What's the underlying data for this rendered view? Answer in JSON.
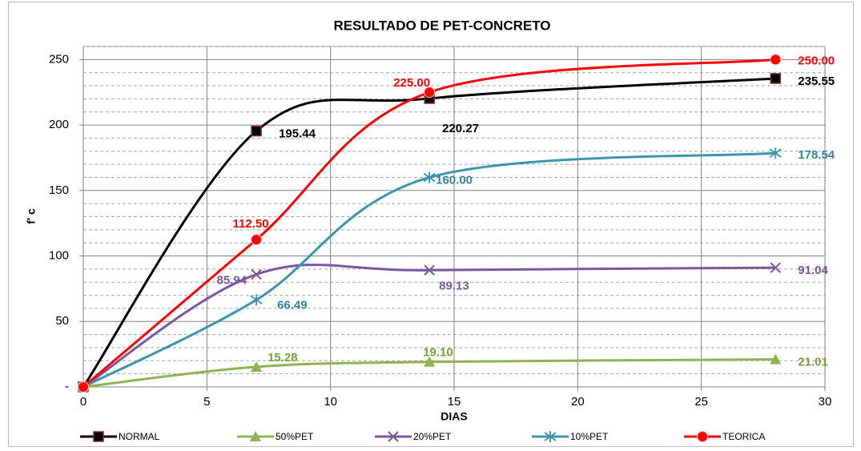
{
  "chart_data": {
    "type": "line",
    "title": "RESULTADO DE PET-CONCRETO",
    "x_label": "DIAS",
    "y_label": "f' c",
    "x": [
      0,
      7,
      14,
      28
    ],
    "xlim": [
      0,
      30
    ],
    "xticks": [
      0,
      5,
      10,
      15,
      20,
      25,
      30
    ],
    "ylim": [
      0,
      260
    ],
    "yticks": [
      {
        "value": 0,
        "label": "-"
      },
      50,
      100,
      150,
      200,
      250
    ],
    "yminor_ticks": [
      10,
      20,
      30,
      40,
      60,
      70,
      80,
      90,
      110,
      120,
      130,
      140,
      160,
      170,
      180,
      190,
      210,
      220,
      230,
      240,
      260
    ],
    "grid": true,
    "smooth": true,
    "legend": "bottom",
    "series": [
      {
        "name": "NORMAL",
        "color": "#000000",
        "marker": "square",
        "values": [
          0,
          195.44,
          220.27,
          235.55
        ],
        "value_labels": [
          null,
          "195.44",
          "220.27",
          "235.55"
        ]
      },
      {
        "name": "50%PET",
        "color": "#8db353",
        "marker": "triangle",
        "values": [
          0,
          15.28,
          19.1,
          21.01
        ],
        "value_labels": [
          null,
          "15.28",
          "19.10",
          "21.01"
        ]
      },
      {
        "name": "20%PET",
        "color": "#7a57a0",
        "marker": "x",
        "values": [
          0,
          85.94,
          89.13,
          91.04
        ],
        "value_labels": [
          null,
          "85.94",
          "89.13",
          "91.04"
        ]
      },
      {
        "name": "10%PET",
        "color": "#3c94ad",
        "marker": "star",
        "values": [
          0,
          66.49,
          160.0,
          178.54
        ],
        "value_labels": [
          null,
          "66.49",
          "160.00",
          "178.54"
        ]
      },
      {
        "name": "TEORICA",
        "color": "#ff0000",
        "marker": "circle",
        "values": [
          0,
          112.5,
          225.0,
          250.0
        ],
        "value_labels": [
          null,
          "112.50",
          "225.00",
          "250.00"
        ]
      }
    ]
  }
}
